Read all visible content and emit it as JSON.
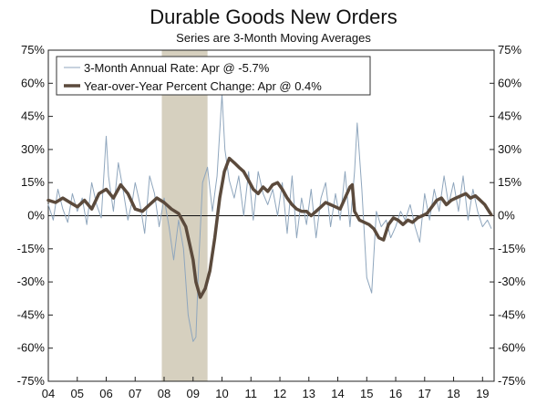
{
  "chart_data": {
    "type": "line",
    "title": "Durable Goods New Orders",
    "subtitle": "Series are 3-Month Moving Averages",
    "xlabel": "",
    "ylabel": "",
    "ylim": [
      -75,
      75
    ],
    "xlim": [
      2004.0,
      2019.4
    ],
    "y_ticks": [
      75,
      60,
      45,
      30,
      15,
      0,
      -15,
      -30,
      -45,
      -60,
      -75
    ],
    "y_tick_labels": [
      "75%",
      "60%",
      "45%",
      "30%",
      "15%",
      "0%",
      "-15%",
      "-30%",
      "-45%",
      "-60%",
      "-75%"
    ],
    "x_ticks": [
      2004,
      2005,
      2006,
      2007,
      2008,
      2009,
      2010,
      2011,
      2012,
      2013,
      2014,
      2015,
      2016,
      2017,
      2018,
      2019
    ],
    "x_tick_labels": [
      "04",
      "05",
      "06",
      "07",
      "08",
      "09",
      "10",
      "11",
      "12",
      "13",
      "14",
      "15",
      "16",
      "17",
      "18",
      "19"
    ],
    "recession": {
      "start": 2007.92,
      "end": 2009.5,
      "color": "#d6d0bf"
    },
    "legend": {
      "placement": "top-left"
    },
    "series": [
      {
        "name": "3-Month Annual Rate: Apr @ -5.7%",
        "color": "#8fa6bd",
        "x": [
          2004.0,
          2004.17,
          2004.33,
          2004.5,
          2004.67,
          2004.83,
          2005.0,
          2005.17,
          2005.33,
          2005.5,
          2005.67,
          2005.83,
          2006.0,
          2006.08,
          2006.25,
          2006.42,
          2006.58,
          2006.75,
          2006.92,
          2007.0,
          2007.17,
          2007.33,
          2007.5,
          2007.67,
          2007.83,
          2008.0,
          2008.17,
          2008.33,
          2008.5,
          2008.67,
          2008.83,
          2009.0,
          2009.1,
          2009.2,
          2009.33,
          2009.5,
          2009.67,
          2009.83,
          2010.0,
          2010.1,
          2010.25,
          2010.42,
          2010.58,
          2010.75,
          2010.92,
          2011.08,
          2011.25,
          2011.42,
          2011.58,
          2011.75,
          2011.92,
          2012.08,
          2012.25,
          2012.42,
          2012.58,
          2012.75,
          2012.92,
          2013.08,
          2013.25,
          2013.42,
          2013.58,
          2013.75,
          2013.92,
          2014.08,
          2014.25,
          2014.42,
          2014.58,
          2014.67,
          2014.83,
          2015.0,
          2015.17,
          2015.33,
          2015.5,
          2015.67,
          2015.83,
          2016.0,
          2016.17,
          2016.33,
          2016.5,
          2016.67,
          2016.83,
          2017.0,
          2017.17,
          2017.33,
          2017.5,
          2017.67,
          2017.83,
          2018.0,
          2018.17,
          2018.33,
          2018.5,
          2018.67,
          2018.83,
          2019.0,
          2019.17,
          2019.3
        ],
        "values": [
          5,
          -2,
          12,
          3,
          -3,
          10,
          2,
          8,
          -4,
          15,
          5,
          -1,
          36,
          18,
          2,
          24,
          12,
          -2,
          8,
          15,
          5,
          -8,
          18,
          10,
          -5,
          8,
          -5,
          -20,
          -2,
          -15,
          -45,
          -57,
          -55,
          -20,
          15,
          22,
          2,
          18,
          55,
          30,
          16,
          8,
          18,
          0,
          20,
          -2,
          20,
          10,
          5,
          12,
          0,
          15,
          -8,
          18,
          -10,
          8,
          -4,
          12,
          -10,
          8,
          15,
          -5,
          10,
          -2,
          20,
          -5,
          20,
          42,
          12,
          -28,
          -35,
          2,
          -5,
          -2,
          -10,
          -5,
          2,
          -2,
          5,
          -5,
          -12,
          10,
          -2,
          12,
          2,
          18,
          5,
          15,
          2,
          18,
          -2,
          12,
          2,
          -5,
          -2,
          -5.7
        ]
      },
      {
        "name": "Year-over-Year Percent Change: Apr @ 0.4%",
        "color": "#5b4a3c",
        "x": [
          2004.0,
          2004.25,
          2004.5,
          2004.75,
          2005.0,
          2005.25,
          2005.5,
          2005.75,
          2006.0,
          2006.25,
          2006.5,
          2006.75,
          2007.0,
          2007.25,
          2007.5,
          2007.75,
          2008.0,
          2008.25,
          2008.5,
          2008.75,
          2009.0,
          2009.1,
          2009.25,
          2009.42,
          2009.58,
          2009.75,
          2009.92,
          2010.08,
          2010.25,
          2010.42,
          2010.58,
          2010.75,
          2010.92,
          2011.08,
          2011.25,
          2011.42,
          2011.58,
          2011.75,
          2011.92,
          2012.08,
          2012.25,
          2012.42,
          2012.58,
          2012.75,
          2012.92,
          2013.08,
          2013.25,
          2013.42,
          2013.58,
          2013.75,
          2013.92,
          2014.08,
          2014.25,
          2014.42,
          2014.5,
          2014.58,
          2014.75,
          2014.92,
          2015.08,
          2015.25,
          2015.42,
          2015.58,
          2015.75,
          2015.92,
          2016.08,
          2016.25,
          2016.42,
          2016.58,
          2016.75,
          2016.92,
          2017.08,
          2017.25,
          2017.42,
          2017.58,
          2017.75,
          2017.92,
          2018.08,
          2018.25,
          2018.42,
          2018.58,
          2018.75,
          2018.92,
          2019.08,
          2019.3
        ],
        "values": [
          7,
          6,
          8,
          6,
          4,
          7,
          3,
          10,
          12,
          8,
          14,
          10,
          3,
          2,
          5,
          8,
          6,
          3,
          1,
          -5,
          -20,
          -30,
          -37,
          -33,
          -25,
          -10,
          8,
          20,
          26,
          24,
          22,
          20,
          16,
          12,
          10,
          13,
          11,
          14,
          15,
          12,
          8,
          5,
          3,
          2,
          2,
          0,
          2,
          4,
          6,
          5,
          4,
          3,
          8,
          13,
          14,
          2,
          -2,
          -3,
          -4,
          -6,
          -10,
          -11,
          -4,
          -1,
          -2,
          -4,
          -2,
          -3,
          -1,
          0,
          1,
          4,
          7,
          8,
          5,
          7,
          8,
          9,
          10,
          8,
          9,
          7,
          5,
          0.4
        ]
      }
    ]
  }
}
